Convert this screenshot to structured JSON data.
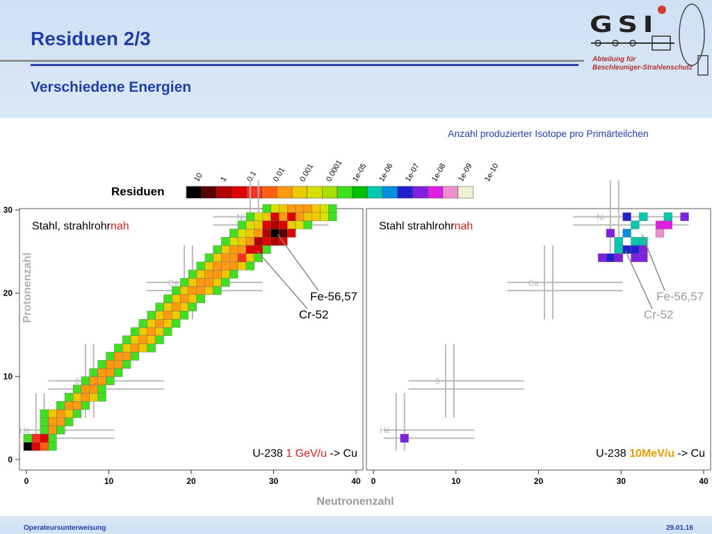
{
  "header": {
    "title": "Residuen 2/3",
    "subtitle": "Verschiedene Energien",
    "logo_text": "GSI",
    "department_line1": "Abteilung für",
    "department_line2": "Beschleuniger-Strahlenschutz",
    "note": "Anzahl produzierter Isotope pro Primärteilchen"
  },
  "footer": {
    "left": "Operateursunterweisung",
    "right": "29.01.16"
  },
  "colors": {
    "title_blue": "#1f3fa6",
    "rule_gray": "#8f8f8f",
    "rule_blue": "#2f3fa8",
    "scale": [
      "#000000",
      "#5a0000",
      "#b00000",
      "#e00000",
      "#ff3020",
      "#ff6010",
      "#ff9a10",
      "#f0c800",
      "#d8e000",
      "#a8e000",
      "#40e020",
      "#00c000",
      "#00c8b0",
      "#0090e0",
      "#2020d0",
      "#8020e0",
      "#e020e0",
      "#f090d0",
      "#f0f0d0"
    ]
  },
  "chart_data": {
    "type": "heatmap",
    "legend": {
      "title": "Residuen",
      "tick_labels": [
        "10",
        "1",
        "0.1",
        "0.01",
        "0.001",
        "0.0001",
        "1e-05",
        "1e-06",
        "1e-07",
        "1e-08",
        "1e-09",
        "1e-10"
      ]
    },
    "xlabel": "Neutronenzahl",
    "ylabel": "Protonenzahl",
    "xlim": [
      0,
      40
    ],
    "ylim": [
      0,
      30
    ],
    "x_ticks": [
      "0",
      "10",
      "20",
      "30",
      "40"
    ],
    "y_ticks": [
      "0",
      "10",
      "20",
      "30"
    ],
    "element_labels": [
      {
        "text": "He",
        "n": 2,
        "z": 2
      },
      {
        "text": "0",
        "n": 8,
        "z": 8
      },
      {
        "text": "Ca",
        "n": 20,
        "z": 20
      },
      {
        "text": "Ni",
        "n": 28,
        "z": 28
      }
    ],
    "panels": [
      {
        "label_main": "Stahl, strahlrohr",
        "label_accent": "nah",
        "beam_main": "U-238",
        "beam_energy": "1 GeV/u",
        "beam_target": "-> Cu",
        "annotations": [
          {
            "text": "Fe-56,57",
            "n": 30.5,
            "z": 26
          },
          {
            "text": "Cr-52",
            "n": 28,
            "z": 24
          }
        ],
        "band": [
          {
            "z": 0,
            "n0": 0,
            "n1": 3
          },
          {
            "z": 1,
            "n0": 0,
            "n1": 3
          },
          {
            "z": 2,
            "n0": 2,
            "n1": 4
          },
          {
            "z": 3,
            "n0": 2,
            "n1": 5
          },
          {
            "z": 4,
            "n0": 2,
            "n1": 6
          },
          {
            "z": 5,
            "n0": 4,
            "n1": 7
          },
          {
            "z": 6,
            "n0": 5,
            "n1": 9
          },
          {
            "z": 7,
            "n0": 6,
            "n1": 9
          },
          {
            "z": 8,
            "n0": 7,
            "n1": 10
          },
          {
            "z": 9,
            "n0": 8,
            "n1": 11
          },
          {
            "z": 10,
            "n0": 9,
            "n1": 12
          },
          {
            "z": 11,
            "n0": 10,
            "n1": 13
          },
          {
            "z": 12,
            "n0": 11,
            "n1": 15
          },
          {
            "z": 13,
            "n0": 12,
            "n1": 16
          },
          {
            "z": 14,
            "n0": 13,
            "n1": 17
          },
          {
            "z": 15,
            "n0": 14,
            "n1": 18
          },
          {
            "z": 16,
            "n0": 15,
            "n1": 19
          },
          {
            "z": 17,
            "n0": 16,
            "n1": 20
          },
          {
            "z": 18,
            "n0": 17,
            "n1": 21
          },
          {
            "z": 19,
            "n0": 18,
            "n1": 23
          },
          {
            "z": 20,
            "n0": 19,
            "n1": 24
          },
          {
            "z": 21,
            "n0": 20,
            "n1": 25
          },
          {
            "z": 22,
            "n0": 21,
            "n1": 27
          },
          {
            "z": 23,
            "n0": 22,
            "n1": 28
          },
          {
            "z": 24,
            "n0": 23,
            "n1": 29
          },
          {
            "z": 25,
            "n0": 24,
            "n1": 31
          },
          {
            "z": 26,
            "n0": 25,
            "n1": 32
          },
          {
            "z": 27,
            "n0": 26,
            "n1": 34
          },
          {
            "z": 28,
            "n0": 27,
            "n1": 37
          },
          {
            "z": 29,
            "n0": 29,
            "n1": 37
          }
        ],
        "cells": [
          {
            "n": 0,
            "z": 0,
            "c": 0
          },
          {
            "n": 1,
            "z": 0,
            "c": 3
          },
          {
            "n": 2,
            "z": 0,
            "c": 5
          },
          {
            "n": 1,
            "z": 1,
            "c": 4
          },
          {
            "n": 2,
            "z": 1,
            "c": 3
          },
          {
            "n": 30,
            "z": 26,
            "c": 0
          },
          {
            "n": 31,
            "z": 26,
            "c": 1
          },
          {
            "n": 29,
            "z": 26,
            "c": 2
          },
          {
            "n": 30,
            "z": 25,
            "c": 2
          },
          {
            "n": 28,
            "z": 25,
            "c": 2
          },
          {
            "n": 28,
            "z": 24,
            "c": 3
          },
          {
            "n": 31,
            "z": 27,
            "c": 3
          },
          {
            "n": 30,
            "z": 27,
            "c": 2
          },
          {
            "n": 29,
            "z": 27,
            "c": 3
          },
          {
            "n": 32,
            "z": 26,
            "c": 3
          },
          {
            "n": 31,
            "z": 25,
            "c": 3
          },
          {
            "n": 29,
            "z": 25,
            "c": 3
          },
          {
            "n": 27,
            "z": 24,
            "c": 3
          },
          {
            "n": 26,
            "z": 23,
            "c": 4
          },
          {
            "n": 32,
            "z": 28,
            "c": 3
          },
          {
            "n": 30,
            "z": 28,
            "c": 3
          }
        ]
      },
      {
        "label_main": "Stahl strahlrohr",
        "label_accent": "nah",
        "beam_main": "U-238",
        "beam_energy": "10MeV/u",
        "beam_target": "-> Cu",
        "annotations": [
          {
            "text": "Fe-56,57",
            "n": 31,
            "z": 26
          },
          {
            "text": "Cr-52",
            "n": 29,
            "z": 24
          }
        ],
        "band": [],
        "cells": [
          {
            "n": 2,
            "z": 1,
            "c": 15
          },
          {
            "n": 29,
            "z": 28,
            "c": 14
          },
          {
            "n": 31,
            "z": 28,
            "c": 12
          },
          {
            "n": 34,
            "z": 28,
            "c": 12
          },
          {
            "n": 36,
            "z": 28,
            "c": 15
          },
          {
            "n": 30,
            "z": 27,
            "c": 12
          },
          {
            "n": 33,
            "z": 27,
            "c": 16
          },
          {
            "n": 34,
            "z": 27,
            "c": 16
          },
          {
            "n": 27,
            "z": 26,
            "c": 15
          },
          {
            "n": 29,
            "z": 26,
            "c": 13
          },
          {
            "n": 33,
            "z": 26,
            "c": 17
          },
          {
            "n": 28,
            "z": 25,
            "c": 12
          },
          {
            "n": 30,
            "z": 25,
            "c": 12
          },
          {
            "n": 31,
            "z": 25,
            "c": 12
          },
          {
            "n": 28,
            "z": 24,
            "c": 12
          },
          {
            "n": 29,
            "z": 24,
            "c": 14
          },
          {
            "n": 30,
            "z": 24,
            "c": 14
          },
          {
            "n": 31,
            "z": 24,
            "c": 15
          },
          {
            "n": 26,
            "z": 23,
            "c": 15
          },
          {
            "n": 27,
            "z": 23,
            "c": 14
          },
          {
            "n": 28,
            "z": 23,
            "c": 15
          },
          {
            "n": 30,
            "z": 23,
            "c": 15
          },
          {
            "n": 31,
            "z": 23,
            "c": 15
          }
        ]
      }
    ]
  }
}
